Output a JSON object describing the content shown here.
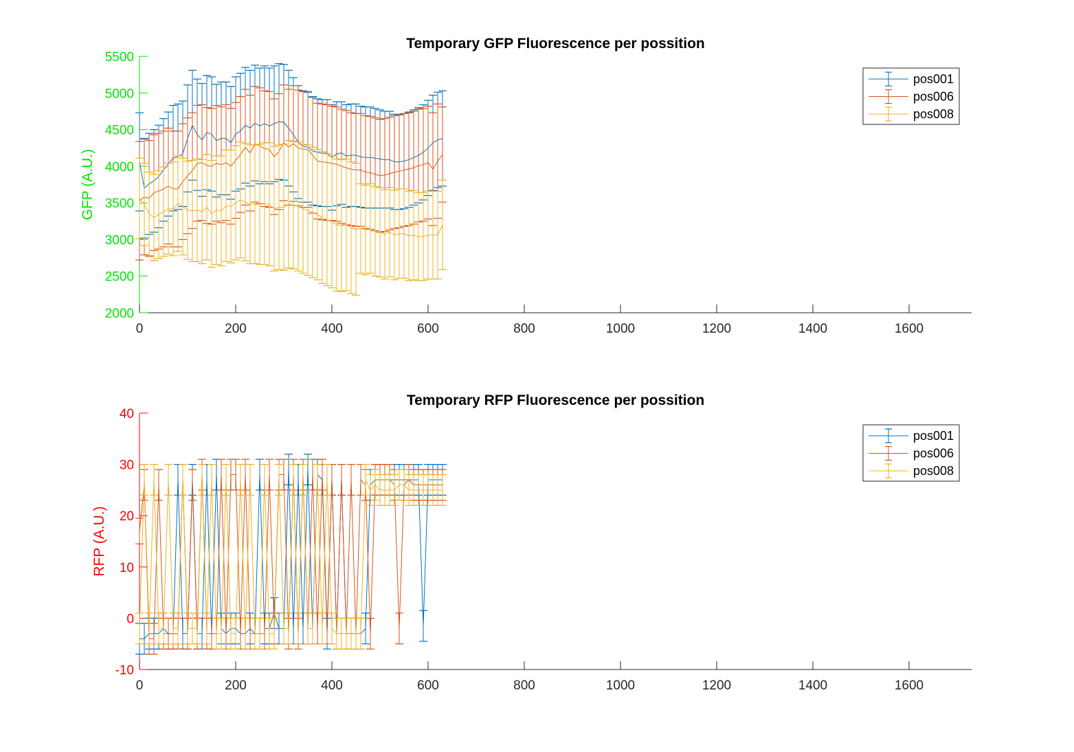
{
  "chart_data": [
    {
      "type": "line",
      "title": "Temporary GFP Fluorescence per possition",
      "ylabel": "GFP (A.U.)",
      "xlabel": "",
      "xlim": [
        0,
        1730
      ],
      "ylim": [
        2000,
        5500
      ],
      "xticks": [
        0,
        200,
        400,
        600,
        800,
        1000,
        1200,
        1400,
        1600
      ],
      "yticks": [
        2000,
        2500,
        3000,
        3500,
        4000,
        4500,
        5000,
        5500
      ],
      "y_axis_color": "#00e600",
      "legend_position": "top-right",
      "error_bars": true,
      "x": [
        0,
        10,
        20,
        30,
        40,
        50,
        60,
        70,
        80,
        90,
        100,
        110,
        120,
        130,
        140,
        150,
        160,
        170,
        180,
        190,
        200,
        210,
        220,
        230,
        240,
        250,
        260,
        270,
        280,
        290,
        300,
        310,
        320,
        330,
        340,
        350,
        360,
        370,
        380,
        390,
        400,
        410,
        420,
        430,
        440,
        450,
        460,
        470,
        480,
        490,
        500,
        510,
        520,
        530,
        540,
        550,
        560,
        570,
        580,
        590,
        600,
        610,
        620,
        630
      ],
      "series": [
        {
          "name": "pos001",
          "color": "#0072BD",
          "values": [
            4060,
            3700,
            3760,
            3800,
            3860,
            3950,
            4030,
            4110,
            4130,
            4170,
            4380,
            4560,
            4430,
            4360,
            4460,
            4440,
            4350,
            4380,
            4380,
            4320,
            4440,
            4480,
            4560,
            4520,
            4590,
            4550,
            4580,
            4550,
            4580,
            4610,
            4600,
            4520,
            4430,
            4330,
            4270,
            4260,
            4210,
            4190,
            4180,
            4180,
            4120,
            4170,
            4180,
            4140,
            4150,
            4150,
            4130,
            4120,
            4120,
            4110,
            4100,
            4090,
            4090,
            4060,
            4060,
            4070,
            4090,
            4120,
            4150,
            4190,
            4250,
            4320,
            4360,
            4380
          ],
          "error": [
            670,
            680,
            690,
            700,
            700,
            700,
            710,
            720,
            720,
            720,
            730,
            750,
            760,
            770,
            780,
            780,
            770,
            770,
            770,
            770,
            780,
            790,
            790,
            790,
            790,
            790,
            790,
            790,
            790,
            790,
            790,
            790,
            780,
            770,
            760,
            750,
            740,
            730,
            730,
            730,
            720,
            710,
            700,
            700,
            700,
            700,
            690,
            690,
            690,
            680,
            670,
            660,
            660,
            650,
            650,
            650,
            650,
            650,
            650,
            650,
            650,
            650,
            650,
            650
          ]
        },
        {
          "name": "pos006",
          "color": "#D95319",
          "values": [
            3530,
            3580,
            3560,
            3640,
            3660,
            3690,
            3730,
            3690,
            3690,
            3790,
            3870,
            3940,
            4040,
            4050,
            4010,
            4000,
            4040,
            4020,
            4050,
            4000,
            4080,
            4160,
            4260,
            4180,
            4300,
            4280,
            4240,
            4230,
            4130,
            4200,
            4320,
            4260,
            4310,
            4250,
            4230,
            4230,
            4150,
            4070,
            4060,
            4050,
            4040,
            4030,
            4000,
            3980,
            3960,
            3950,
            3950,
            3920,
            3910,
            3890,
            3870,
            3880,
            3900,
            3920,
            3930,
            3950,
            3960,
            3980,
            4010,
            4020,
            4050,
            3960,
            4070,
            4160
          ],
          "error": [
            810,
            790,
            790,
            790,
            790,
            790,
            790,
            790,
            790,
            790,
            790,
            790,
            790,
            790,
            790,
            790,
            790,
            790,
            790,
            790,
            790,
            790,
            790,
            790,
            790,
            790,
            790,
            790,
            790,
            790,
            790,
            790,
            790,
            790,
            790,
            790,
            790,
            790,
            790,
            790,
            780,
            780,
            780,
            780,
            770,
            770,
            770,
            770,
            770,
            770,
            770,
            770,
            770,
            770,
            770,
            770,
            770,
            770,
            770,
            770,
            770,
            770,
            780,
            650
          ]
        },
        {
          "name": "pos008",
          "color": "#EDB120",
          "values": [
            3560,
            3480,
            3350,
            3300,
            3340,
            3380,
            3420,
            3420,
            3490,
            3450,
            3400,
            3390,
            3400,
            3380,
            3440,
            3350,
            3400,
            3390,
            3460,
            3450,
            3500,
            3540,
            3510,
            3480,
            3480,
            3480,
            3490,
            3480,
            3420,
            3440,
            3440,
            3480,
            3470,
            3450,
            3420,
            3400,
            3370,
            3340,
            3300,
            3270,
            3240,
            3200,
            3190,
            3200,
            3160,
            3140,
            3150,
            3130,
            3150,
            3110,
            3100,
            3070,
            3100,
            3060,
            3080,
            3080,
            3050,
            3060,
            3040,
            3040,
            3060,
            3060,
            3060,
            3200
          ],
          "error": [
            550,
            560,
            570,
            590,
            600,
            610,
            620,
            640,
            650,
            660,
            670,
            690,
            700,
            710,
            720,
            730,
            740,
            750,
            760,
            770,
            780,
            790,
            800,
            810,
            810,
            820,
            830,
            840,
            850,
            850,
            860,
            870,
            870,
            880,
            880,
            890,
            890,
            890,
            900,
            900,
            900,
            900,
            900,
            900,
            900,
            900,
            610,
            610,
            610,
            610,
            610,
            610,
            610,
            610,
            610,
            610,
            610,
            610,
            600,
            600,
            600,
            600,
            600,
            610
          ]
        }
      ]
    },
    {
      "type": "line",
      "title": "Temporary RFP Fluorescence per possition",
      "ylabel": "RFP (A.U.)",
      "xlabel": "",
      "xlim": [
        0,
        1730
      ],
      "ylim": [
        -10,
        40
      ],
      "xticks": [
        0,
        200,
        400,
        600,
        800,
        1000,
        1200,
        1400,
        1600
      ],
      "yticks": [
        -10,
        0,
        10,
        20,
        30,
        40
      ],
      "y_axis_color": "#ff0000",
      "legend_position": "top-right",
      "error_bars": true,
      "x": [
        0,
        10,
        20,
        30,
        40,
        50,
        60,
        70,
        80,
        90,
        100,
        110,
        120,
        130,
        140,
        150,
        160,
        170,
        180,
        190,
        200,
        210,
        220,
        230,
        240,
        250,
        260,
        270,
        280,
        290,
        300,
        310,
        320,
        330,
        340,
        350,
        360,
        370,
        380,
        390,
        400,
        410,
        420,
        430,
        440,
        450,
        460,
        470,
        480,
        490,
        500,
        510,
        520,
        530,
        540,
        550,
        560,
        570,
        580,
        590,
        600,
        610,
        620,
        630
      ],
      "series": [
        {
          "name": "pos001",
          "color": "#0072BD",
          "values": [
            -4,
            -4,
            -3,
            -3,
            -3,
            -2,
            -3,
            -3,
            27,
            -3,
            -3,
            27,
            -3,
            -3,
            27,
            -3,
            28,
            -2,
            -3,
            -2,
            -2,
            -3,
            -3,
            -2,
            -3,
            28,
            -2,
            -2,
            1,
            -2,
            -2,
            29,
            -2,
            27,
            -2,
            29,
            -2,
            28,
            27,
            -3,
            27,
            -3,
            27,
            -3,
            -3,
            -3,
            -3,
            -2,
            26,
            27,
            27,
            27,
            27,
            27,
            27,
            27,
            27,
            27,
            27,
            -1.5,
            27,
            27,
            27,
            27
          ],
          "error": [
            3,
            3,
            3,
            3,
            3,
            3,
            3,
            3,
            3,
            3,
            3,
            3,
            3,
            3,
            3,
            3,
            3,
            3,
            3,
            3,
            3,
            3,
            3,
            3,
            3,
            3,
            3,
            3,
            3,
            3,
            3,
            3,
            3,
            3,
            3,
            3,
            3,
            3,
            3,
            3,
            3,
            3,
            3,
            3,
            3,
            3,
            3,
            3,
            3,
            3,
            3,
            3,
            3,
            3,
            3,
            3,
            3,
            3,
            3,
            3,
            3,
            3,
            3,
            3
          ]
        },
        {
          "name": "pos006",
          "color": "#D95319",
          "values": [
            17,
            26,
            -4,
            -4,
            26,
            -3,
            -3,
            -3,
            -3,
            27,
            -3,
            26,
            -3,
            28,
            -3,
            -3,
            -3,
            28,
            -3,
            28,
            28,
            -3,
            28,
            -3,
            -3,
            -3,
            -3,
            28,
            -2,
            28,
            28,
            -3,
            28,
            -3,
            28,
            -2,
            28,
            -2,
            28,
            -2,
            27,
            -3,
            27,
            -3,
            27,
            -3,
            27,
            26,
            -3,
            27,
            27,
            27,
            27,
            26,
            -2,
            26,
            27,
            26,
            26,
            26,
            26,
            26,
            26,
            26
          ],
          "error": [
            2.5,
            3,
            3,
            3,
            3,
            3,
            3,
            3,
            3,
            3,
            3,
            3,
            3,
            3,
            3,
            3,
            3,
            3,
            3,
            3,
            3,
            3,
            3,
            3,
            3,
            3,
            3,
            3,
            3,
            3,
            3,
            3,
            3,
            3,
            3,
            3,
            3,
            3,
            3,
            3,
            3,
            3,
            3,
            3,
            3,
            3,
            3,
            3,
            3,
            3,
            3,
            3,
            3,
            3,
            3,
            3,
            3,
            3,
            3,
            3,
            3,
            3,
            3,
            3
          ]
        },
        {
          "name": "pos008",
          "color": "#EDB120",
          "values": [
            -2,
            27,
            -2,
            27,
            -2,
            -2,
            27,
            -2,
            -2,
            27,
            -2,
            -2,
            -2,
            27,
            -2,
            27,
            -3,
            -3,
            27,
            -3,
            -3,
            27,
            -3,
            27,
            -3,
            -3,
            27,
            -3,
            -3,
            27,
            -2,
            -2,
            27,
            -2,
            27,
            -2,
            -2,
            27,
            -2,
            27,
            -2,
            -3,
            -3,
            -3,
            -3,
            -3,
            -3,
            27,
            25,
            26,
            25,
            25,
            25,
            25,
            26,
            26,
            25,
            25,
            25,
            25,
            25,
            25,
            25,
            25
          ],
          "error": [
            3,
            3,
            3,
            3,
            3,
            3,
            3,
            3,
            3,
            3,
            3,
            3,
            3,
            3,
            3,
            3,
            3,
            3,
            3,
            3,
            3,
            3,
            3,
            3,
            3,
            3,
            3,
            3,
            3,
            3,
            3,
            3,
            3,
            3,
            3,
            3,
            3,
            3,
            3,
            3,
            3,
            3,
            3,
            3,
            3,
            3,
            3,
            3,
            3,
            3,
            3,
            3,
            3,
            3,
            3,
            3,
            3,
            3,
            3,
            3,
            3,
            3,
            3,
            3
          ]
        }
      ]
    }
  ]
}
